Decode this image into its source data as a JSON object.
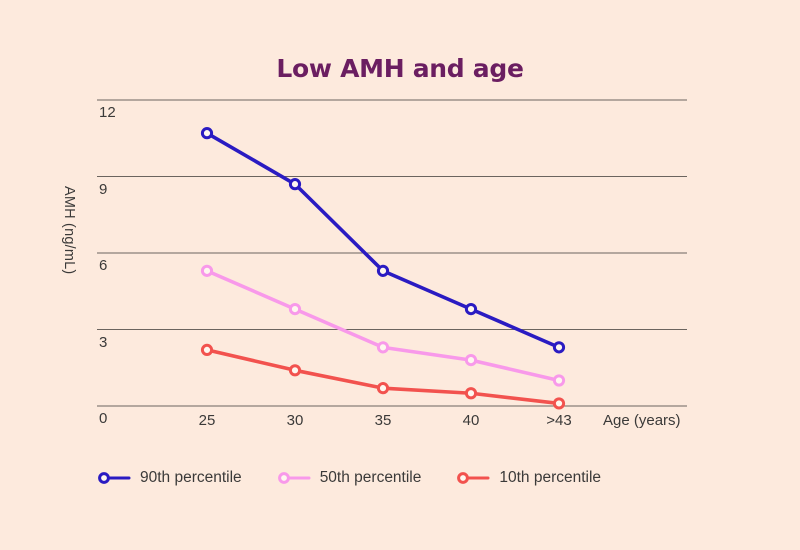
{
  "chart_data": {
    "type": "line",
    "title": "Low AMH and age",
    "xlabel": "Age (years)",
    "ylabel": "AMH (ng/mL)",
    "x_categories": [
      "25",
      "30",
      "35",
      "40",
      ">43"
    ],
    "y_ticks": [
      12,
      9,
      6,
      3,
      0
    ],
    "ylim": [
      0,
      12
    ],
    "grid": "horizontal",
    "legend_position": "bottom",
    "series": [
      {
        "name": "90th percentile",
        "color": "#2a1bc2",
        "values": [
          10.7,
          8.7,
          5.3,
          3.8,
          2.3
        ]
      },
      {
        "name": "50th percentile",
        "color": "#f899ea",
        "values": [
          5.3,
          3.8,
          2.3,
          1.8,
          1.0
        ]
      },
      {
        "name": "10th percentile",
        "color": "#f2524e",
        "values": [
          2.2,
          1.4,
          0.7,
          0.5,
          0.1
        ]
      }
    ]
  },
  "colors": {
    "background": "#fdeadd",
    "title": "#6b1e61",
    "grid": "#6b645e",
    "text": "#3b3a39",
    "marker_fill": "#fef7ef"
  }
}
